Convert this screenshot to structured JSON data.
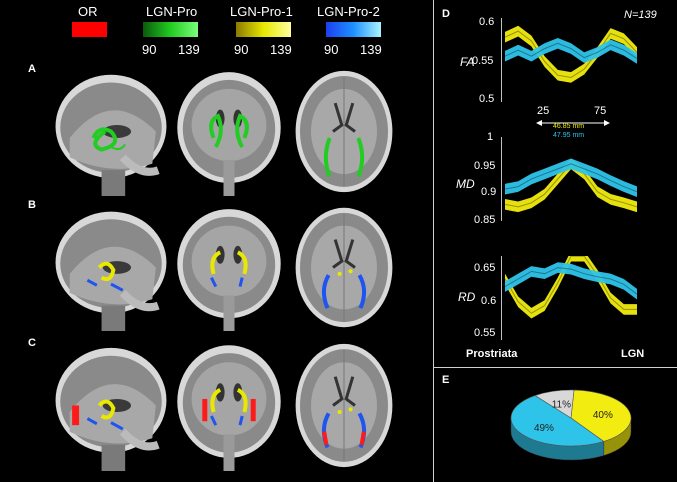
{
  "legend": {
    "items": [
      {
        "label": "OR",
        "color": "#ff0000"
      },
      {
        "label": "LGN-Pro",
        "color": "#22cc22",
        "min": "90",
        "max": "139"
      },
      {
        "label": "LGN-Pro-1",
        "color": "#e8e800",
        "min": "90",
        "max": "139"
      },
      {
        "label": "LGN-Pro-2",
        "color": "#1e90ff",
        "min": "90",
        "max": "139"
      }
    ]
  },
  "panels": {
    "a": "A",
    "b": "B",
    "c": "C",
    "d": "D",
    "e": "E"
  },
  "profile": {
    "n_label": "N=139",
    "x_ticks": [
      "25",
      "75"
    ],
    "len1": "46.85 mm",
    "len2": "47.95 mm",
    "left_label": "Prostriata",
    "right_label": "LGN",
    "colors": {
      "pro1": "#f2ec10",
      "pro2": "#2ec4ea"
    }
  },
  "chart_data": [
    {
      "type": "line",
      "ylabel": "FA",
      "ylim": [
        0.5,
        0.6
      ],
      "yticks": [
        "0.6",
        "0.55",
        "0.5"
      ],
      "x": [
        0,
        10,
        20,
        30,
        40,
        50,
        60,
        70,
        80,
        90,
        100
      ],
      "series": [
        {
          "name": "LGN-Pro-1",
          "values": [
            0.58,
            0.588,
            0.575,
            0.548,
            0.53,
            0.527,
            0.538,
            0.56,
            0.585,
            0.578,
            0.56
          ]
        },
        {
          "name": "LGN-Pro-2",
          "values": [
            0.555,
            0.563,
            0.555,
            0.565,
            0.572,
            0.565,
            0.553,
            0.56,
            0.57,
            0.563,
            0.552
          ]
        }
      ]
    },
    {
      "type": "line",
      "ylabel": "MD",
      "ylim": [
        0.85,
        1
      ],
      "yticks": [
        "1",
        "0.95",
        "0.9",
        "0.85"
      ],
      "x": [
        0,
        10,
        20,
        30,
        40,
        50,
        60,
        70,
        80,
        90,
        100
      ],
      "series": [
        {
          "name": "LGN-Pro-1",
          "values": [
            0.875,
            0.87,
            0.878,
            0.895,
            0.925,
            0.955,
            0.935,
            0.9,
            0.885,
            0.878,
            0.87
          ]
        },
        {
          "name": "LGN-Pro-2",
          "values": [
            0.905,
            0.91,
            0.925,
            0.935,
            0.945,
            0.955,
            0.945,
            0.935,
            0.922,
            0.91,
            0.9
          ]
        }
      ]
    },
    {
      "type": "line",
      "ylabel": "RD",
      "ylim": [
        0.55,
        0.65
      ],
      "yticks": [
        "0.65",
        "0.6",
        "0.55"
      ],
      "x": [
        0,
        10,
        20,
        30,
        40,
        50,
        60,
        70,
        80,
        90,
        100
      ],
      "series": [
        {
          "name": "LGN-Pro-1",
          "values": [
            0.625,
            0.595,
            0.58,
            0.59,
            0.62,
            0.655,
            0.655,
            0.63,
            0.6,
            0.585,
            0.585
          ]
        },
        {
          "name": "LGN-Pro-2",
          "values": [
            0.615,
            0.625,
            0.635,
            0.632,
            0.64,
            0.638,
            0.632,
            0.628,
            0.625,
            0.618,
            0.605
          ]
        }
      ]
    },
    {
      "type": "pie",
      "labels": [
        "40%",
        "49%",
        "11%"
      ],
      "values": [
        40,
        49,
        11
      ],
      "colors": [
        "#f2ec10",
        "#2ec4ea",
        "#d8d8d8"
      ]
    }
  ]
}
